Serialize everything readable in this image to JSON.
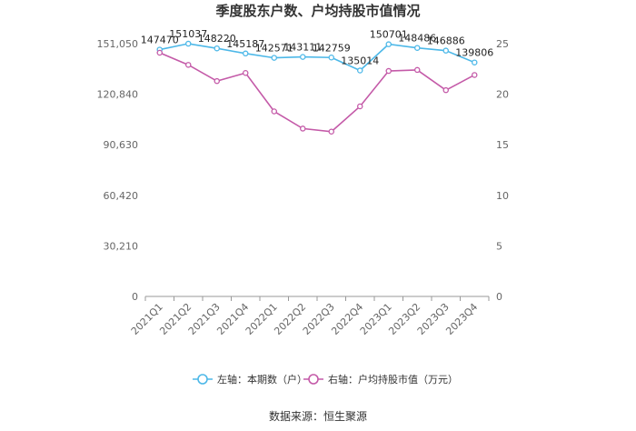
{
  "chart_data": {
    "type": "line",
    "title": "季度股东户数、户均持股市值情况",
    "categories": [
      "2021Q1",
      "2021Q2",
      "2021Q3",
      "2021Q4",
      "2022Q1",
      "2022Q2",
      "2022Q3",
      "2022Q4",
      "2023Q1",
      "2023Q2",
      "2023Q3",
      "2023Q4"
    ],
    "left_axis": {
      "ticks": [
        "0",
        "30,210",
        "60,420",
        "90,630",
        "120,840",
        "151,050"
      ],
      "min": 0,
      "max": 151050
    },
    "right_axis": {
      "ticks": [
        "0",
        "5",
        "10",
        "15",
        "20",
        "25"
      ],
      "min": 0,
      "max": 25
    },
    "series": [
      {
        "name": "左轴：本期数（户）",
        "axis": "left",
        "color": "#4db8e8",
        "values": [
          147470,
          151037,
          148220,
          145187,
          142571,
          143111,
          142759,
          135014,
          150701,
          148486,
          146886,
          139806
        ],
        "labels": [
          "147470",
          "151037",
          "148220",
          "145187",
          "142571",
          "143111",
          "142759",
          "135014",
          "150701",
          "148486",
          "146886",
          "139806"
        ]
      },
      {
        "name": "右轴：户均持股市值（万元）",
        "axis": "right",
        "color": "#c45aa8",
        "values": [
          24.1,
          22.9,
          21.3,
          22.1,
          18.3,
          16.6,
          16.3,
          18.8,
          22.3,
          22.4,
          20.4,
          21.9
        ]
      }
    ],
    "grid": false,
    "legend_position": "bottom",
    "source": "数据来源：恒生聚源"
  }
}
